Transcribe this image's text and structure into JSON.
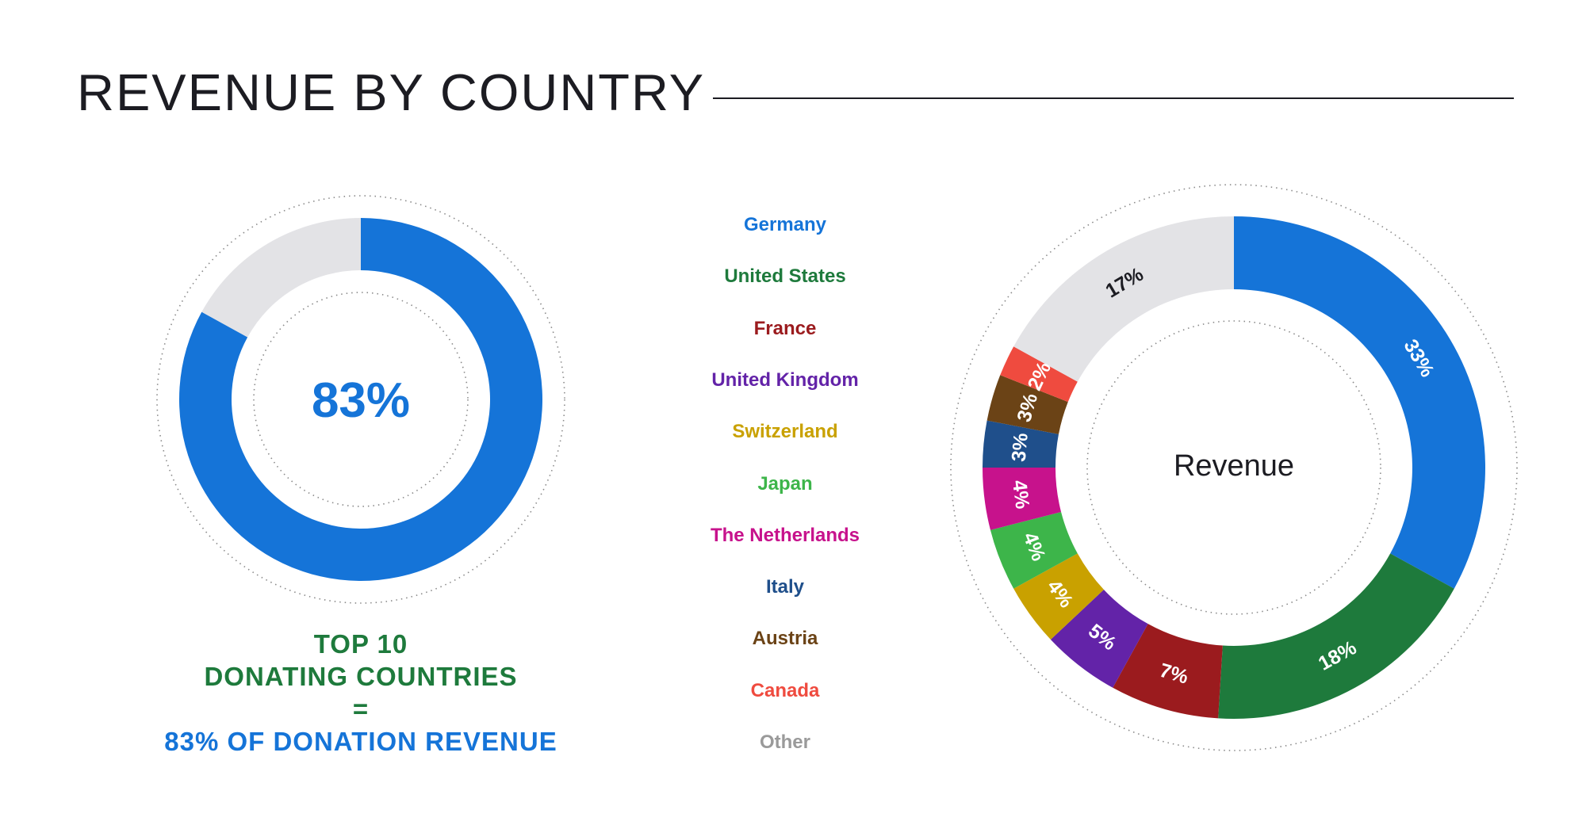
{
  "title": "REVENUE BY COUNTRY",
  "colors": {
    "germany": "#1574d8",
    "united_states": "#1e7a3c",
    "france": "#9b1b1e",
    "united_kingdom": "#6323a8",
    "switzerland": "#c9a100",
    "japan": "#3db54a",
    "netherlands": "#c7128c",
    "italy": "#1f4f8b",
    "austria": "#6b4316",
    "canada": "#ef4b3f",
    "other": "#e3e3e6",
    "other_text": "#9a9a9a",
    "title": "#1c1c22",
    "summary_green": "#1e7a3c",
    "summary_blue": "#1574d8"
  },
  "summary": {
    "center_value": "83%",
    "line1": "TOP 10",
    "line2": "DONATING COUNTRIES",
    "line3": "=",
    "line4": "83% OF DONATION REVENUE"
  },
  "chart_data": [
    {
      "type": "pie",
      "variant": "donut",
      "center_label": "83%",
      "slices": [
        {
          "label": "",
          "value": 83,
          "color": "#1574d8"
        },
        {
          "label": "",
          "value": 17,
          "color": "#e3e3e6"
        }
      ]
    },
    {
      "type": "pie",
      "variant": "donut",
      "center_label": "Revenue",
      "legend_position": "left",
      "slices": [
        {
          "label": "Germany",
          "value": 33,
          "display": "33%",
          "color": "#1574d8"
        },
        {
          "label": "United States",
          "value": 18,
          "display": "18%",
          "color": "#1e7a3c"
        },
        {
          "label": "France",
          "value": 7,
          "display": "7%",
          "color": "#9b1b1e"
        },
        {
          "label": "United Kingdom",
          "value": 5,
          "display": "5%",
          "color": "#6323a8"
        },
        {
          "label": "Switzerland",
          "value": 4,
          "display": "4%",
          "color": "#c9a100"
        },
        {
          "label": "Japan",
          "value": 4,
          "display": "4%",
          "color": "#3db54a"
        },
        {
          "label": "The Netherlands",
          "value": 4,
          "display": "4%",
          "color": "#c7128c"
        },
        {
          "label": "Italy",
          "value": 3,
          "display": "3%",
          "color": "#1f4f8b"
        },
        {
          "label": "Austria",
          "value": 3,
          "display": "3%",
          "color": "#6b4316"
        },
        {
          "label": "Canada",
          "value": 2,
          "display": "2%",
          "color": "#ef4b3f"
        },
        {
          "label": "Other",
          "value": 17,
          "display": "17%",
          "color": "#e3e3e6"
        }
      ]
    }
  ]
}
